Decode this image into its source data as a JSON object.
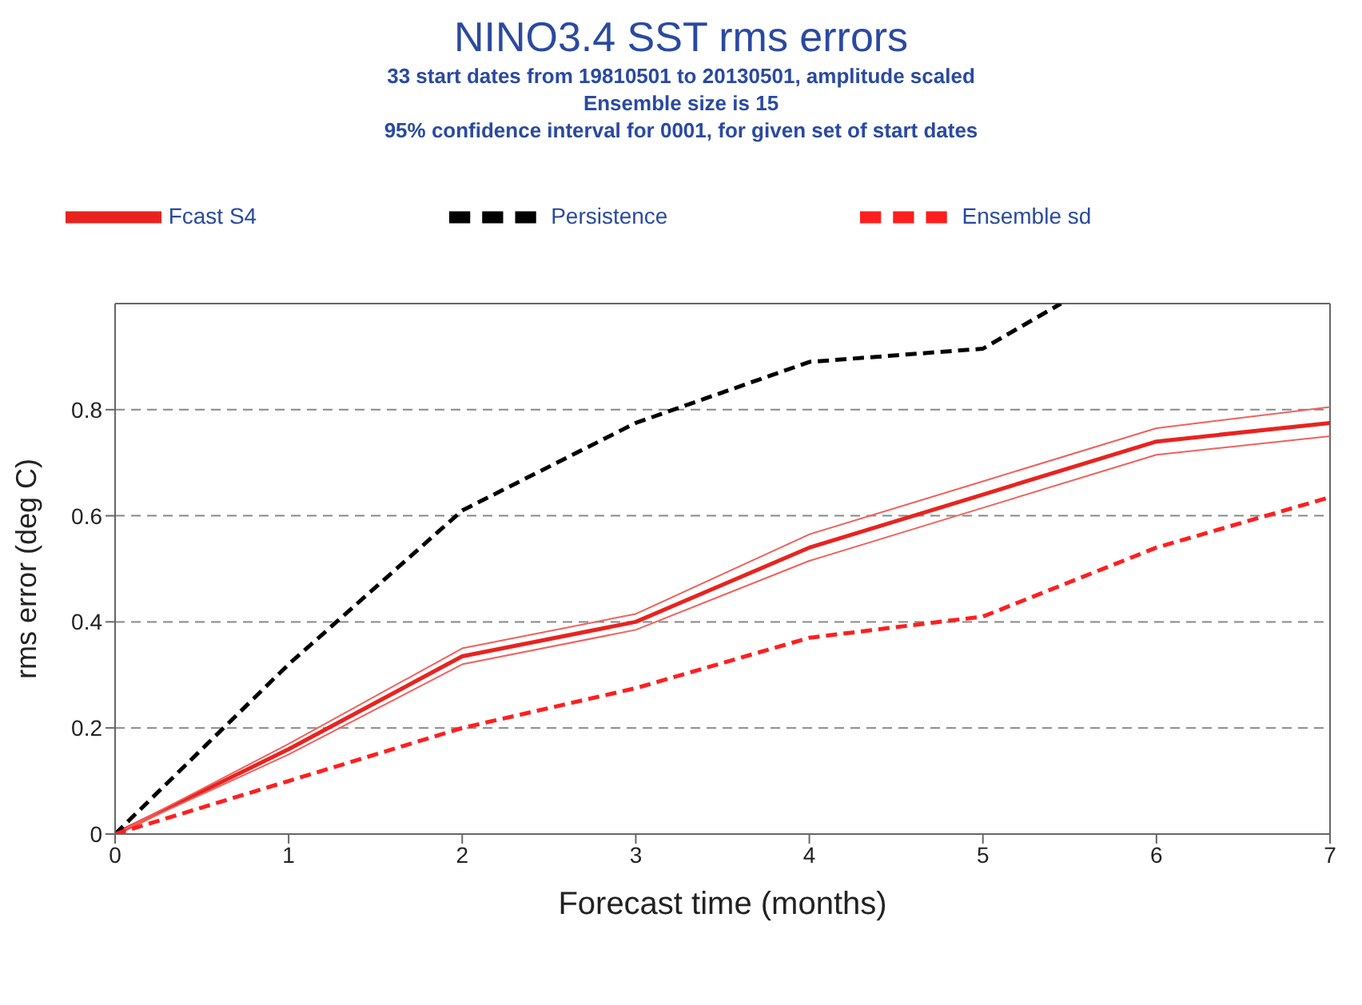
{
  "chart_data": {
    "type": "line",
    "title": "NINO3.4 SST rms errors",
    "subtitle": "33 start dates from 19810501 to 20130501, amplitude scaled\nEnsemble size is 15\n95% confidence interval for 0001, for given set of start dates",
    "xlabel": "Forecast time (months)",
    "ylabel": "rms error (deg C)",
    "x": [
      0,
      1,
      2,
      3,
      4,
      5,
      6,
      7
    ],
    "series": [
      {
        "name": "Fcast S4",
        "color": "#e8231f",
        "line_style": "solid",
        "values": [
          0,
          0.16,
          0.335,
          0.4,
          0.54,
          0.64,
          0.74,
          0.775
        ]
      },
      {
        "color": "#f0605c",
        "line_style": "solid",
        "values": [
          0,
          0.15,
          0.32,
          0.385,
          0.515,
          0.615,
          0.715,
          0.75
        ]
      },
      {
        "color": "#f0605c",
        "line_style": "solid",
        "values": [
          0,
          0.17,
          0.35,
          0.415,
          0.565,
          0.665,
          0.765,
          0.805
        ]
      },
      {
        "name": "Persistence",
        "color": "#000000",
        "line_style": "dashed",
        "x": [
          0,
          1,
          2,
          3,
          4,
          5,
          5.45
        ],
        "values": [
          0,
          0.32,
          0.61,
          0.775,
          0.89,
          0.915,
          1.0
        ]
      },
      {
        "name": "Ensemble sd",
        "color": "#ff1f1f",
        "line_style": "dashed",
        "values": [
          0,
          0.1,
          0.2,
          0.275,
          0.37,
          0.41,
          0.54,
          0.635
        ]
      }
    ],
    "xlim": [
      0,
      7
    ],
    "xticks": [
      0,
      1,
      2,
      3,
      4,
      5,
      6,
      7
    ],
    "ylim": [
      0,
      1
    ],
    "yticks": [
      0,
      0.2,
      0.4,
      0.6,
      0.8
    ],
    "grid": "y",
    "legend": "top",
    "marker": "none"
  }
}
